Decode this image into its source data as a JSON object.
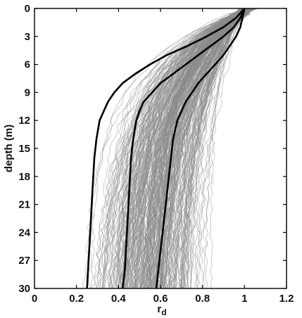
{
  "chart_data": {
    "type": "line",
    "title": "",
    "xlabel": "r",
    "xlabel_sub": "d",
    "ylabel": "depth (m)",
    "xlim": [
      0,
      1.2
    ],
    "ylim": [
      0,
      30
    ],
    "y_inverted": true,
    "x_ticks": [
      0,
      0.2,
      0.4,
      0.6,
      0.8,
      1,
      1.2
    ],
    "x_tick_labels": [
      "0",
      "0.2",
      "0.4",
      "0.6",
      "0.8",
      "1",
      "1.2"
    ],
    "y_ticks": [
      0,
      3,
      6,
      9,
      12,
      15,
      18,
      21,
      24,
      27,
      30
    ],
    "y_tick_labels": [
      "0",
      "3",
      "6",
      "9",
      "12",
      "15",
      "18",
      "21",
      "24",
      "27",
      "30"
    ],
    "grid": false,
    "legend": "none",
    "colors": {
      "ensemble": "#8a8a8a",
      "summary": "#000000"
    },
    "summary_depth": [
      0,
      1,
      2,
      3,
      4,
      5,
      6,
      7,
      8,
      9,
      10,
      11,
      12,
      14,
      16,
      18,
      20,
      22,
      24,
      26,
      28,
      30
    ],
    "series": [
      {
        "values": [
          1.0,
          0.96,
          0.9,
          0.82,
          0.73,
          0.63,
          0.55,
          0.48,
          0.42,
          0.38,
          0.35,
          0.33,
          0.31,
          0.295,
          0.285,
          0.28,
          0.275,
          0.27,
          0.265,
          0.26,
          0.255,
          0.25
        ]
      },
      {
        "values": [
          1.0,
          0.98,
          0.95,
          0.9,
          0.84,
          0.78,
          0.72,
          0.66,
          0.6,
          0.56,
          0.52,
          0.5,
          0.485,
          0.47,
          0.46,
          0.455,
          0.45,
          0.445,
          0.44,
          0.435,
          0.43,
          0.42
        ]
      },
      {
        "values": [
          1.0,
          0.99,
          0.98,
          0.96,
          0.93,
          0.9,
          0.86,
          0.82,
          0.78,
          0.75,
          0.72,
          0.7,
          0.68,
          0.66,
          0.65,
          0.64,
          0.63,
          0.62,
          0.61,
          0.6,
          0.59,
          0.58
        ]
      }
    ],
    "ensemble": {
      "count": 300,
      "depth_range": [
        0,
        30
      ],
      "rd_range": [
        0.15,
        1.18
      ],
      "rd_at_30m_range": [
        0.15,
        0.9
      ]
    }
  }
}
